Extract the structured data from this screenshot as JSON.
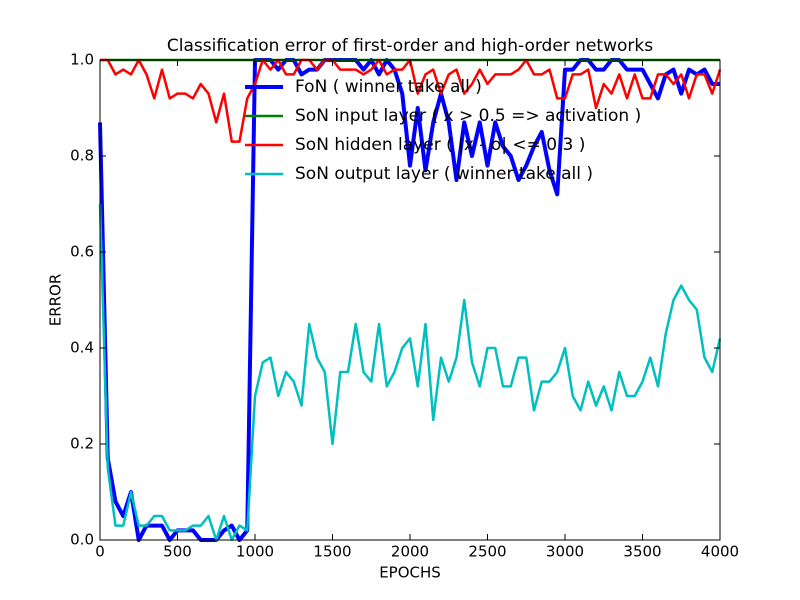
{
  "chart_data": {
    "type": "line",
    "title": "Classification error of first-order and high-order networks",
    "x_label": "EPOCHS",
    "y_label": "ERROR",
    "x": [
      0,
      50,
      100,
      150,
      200,
      250,
      300,
      350,
      400,
      450,
      500,
      550,
      600,
      650,
      700,
      750,
      800,
      850,
      900,
      950,
      1000,
      1050,
      1100,
      1150,
      1200,
      1250,
      1300,
      1350,
      1400,
      1450,
      1500,
      1550,
      1600,
      1650,
      1700,
      1750,
      1800,
      1850,
      1900,
      1950,
      2000,
      2050,
      2100,
      2150,
      2200,
      2250,
      2300,
      2350,
      2400,
      2450,
      2500,
      2550,
      2600,
      2650,
      2700,
      2750,
      2800,
      2850,
      2900,
      2950,
      3000,
      3050,
      3100,
      3150,
      3200,
      3250,
      3300,
      3350,
      3400,
      3450,
      3500,
      3550,
      3600,
      3650,
      3700,
      3750,
      3800,
      3850,
      3900,
      3950,
      4000
    ],
    "series": [
      {
        "name": "FoN ( winner take all )",
        "color": "#0000ff",
        "values": [
          0.87,
          0.17,
          0.08,
          0.05,
          0.1,
          0.0,
          0.03,
          0.03,
          0.03,
          0.0,
          0.02,
          0.02,
          0.02,
          0.0,
          0.0,
          0.0,
          0.02,
          0.03,
          0.0,
          0.02,
          1.0,
          1.0,
          1.0,
          0.98,
          1.0,
          1.0,
          0.97,
          0.98,
          0.98,
          1.0,
          1.0,
          1.0,
          1.0,
          1.0,
          0.98,
          1.0,
          0.97,
          1.0,
          0.98,
          0.93,
          0.78,
          0.9,
          0.77,
          0.87,
          0.93,
          0.87,
          0.75,
          0.87,
          0.8,
          0.87,
          0.78,
          0.87,
          0.82,
          0.8,
          0.75,
          0.78,
          0.82,
          0.85,
          0.77,
          0.72,
          0.98,
          0.98,
          1.0,
          1.0,
          0.98,
          0.98,
          1.0,
          1.0,
          0.98,
          0.98,
          0.98,
          0.95,
          0.92,
          0.97,
          0.98,
          0.93,
          0.98,
          0.97,
          0.98,
          0.95,
          0.95
        ]
      },
      {
        "name": "SoN input layer ( x > 0.5 => activation )",
        "color": "#008000",
        "values": [
          1,
          1,
          1,
          1,
          1,
          1,
          1,
          1,
          1,
          1,
          1,
          1,
          1,
          1,
          1,
          1,
          1,
          1,
          1,
          1,
          1,
          1,
          1,
          1,
          1,
          1,
          1,
          1,
          1,
          1,
          1,
          1,
          1,
          1,
          1,
          1,
          1,
          1,
          1,
          1,
          1,
          1,
          1,
          1,
          1,
          1,
          1,
          1,
          1,
          1,
          1,
          1,
          1,
          1,
          1,
          1,
          1,
          1,
          1,
          1,
          1,
          1,
          1,
          1,
          1,
          1,
          1,
          1,
          1,
          1,
          1,
          1,
          1,
          1,
          1,
          1,
          1,
          1,
          1,
          1,
          1
        ]
      },
      {
        "name": "SoN hidden layer ( |x - o| <= 0.3 )",
        "color": "#ff0000",
        "values": [
          1.0,
          1.0,
          0.97,
          0.98,
          0.97,
          1.0,
          0.97,
          0.92,
          0.98,
          0.92,
          0.93,
          0.93,
          0.92,
          0.95,
          0.93,
          0.87,
          0.93,
          0.83,
          0.83,
          0.92,
          0.95,
          1.0,
          0.98,
          1.0,
          0.97,
          0.97,
          1.0,
          1.0,
          0.98,
          1.0,
          1.0,
          0.98,
          0.98,
          0.98,
          0.97,
          0.98,
          1.0,
          0.97,
          0.98,
          0.98,
          1.0,
          0.93,
          0.97,
          0.98,
          0.93,
          0.97,
          0.98,
          0.93,
          0.95,
          0.98,
          0.95,
          0.97,
          0.97,
          0.97,
          0.98,
          1.0,
          0.97,
          0.97,
          0.98,
          0.92,
          0.92,
          0.97,
          0.97,
          0.98,
          0.9,
          0.95,
          0.93,
          0.97,
          0.92,
          0.97,
          0.92,
          0.92,
          0.97,
          0.97,
          0.95,
          0.97,
          0.92,
          0.97,
          0.97,
          0.93,
          0.98
        ]
      },
      {
        "name": "SoN output layer ( winner take all )",
        "color": "#00bfbf",
        "values": [
          0.7,
          0.15,
          0.03,
          0.03,
          0.1,
          0.03,
          0.03,
          0.05,
          0.05,
          0.02,
          0.02,
          0.02,
          0.03,
          0.03,
          0.05,
          0.0,
          0.05,
          0.0,
          0.03,
          0.02,
          0.3,
          0.37,
          0.38,
          0.3,
          0.35,
          0.33,
          0.28,
          0.45,
          0.38,
          0.35,
          0.2,
          0.35,
          0.35,
          0.45,
          0.35,
          0.33,
          0.45,
          0.32,
          0.35,
          0.4,
          0.42,
          0.32,
          0.45,
          0.25,
          0.38,
          0.33,
          0.38,
          0.5,
          0.37,
          0.32,
          0.4,
          0.4,
          0.32,
          0.32,
          0.38,
          0.38,
          0.27,
          0.33,
          0.33,
          0.35,
          0.4,
          0.3,
          0.27,
          0.33,
          0.28,
          0.32,
          0.27,
          0.35,
          0.3,
          0.3,
          0.33,
          0.38,
          0.32,
          0.43,
          0.5,
          0.53,
          0.5,
          0.48,
          0.38,
          0.35,
          0.42
        ]
      }
    ],
    "xlim": [
      0,
      4000
    ],
    "xticks": [
      0,
      500,
      1000,
      1500,
      2000,
      2500,
      3000,
      3500,
      4000
    ],
    "ylim": [
      0,
      1
    ],
    "yticks": [
      {
        "value": 0,
        "label": "0.0"
      },
      0.2,
      0.4,
      0.6,
      0.8,
      {
        "value": 1,
        "label": "1.0"
      }
    ],
    "legend": "upper center"
  }
}
